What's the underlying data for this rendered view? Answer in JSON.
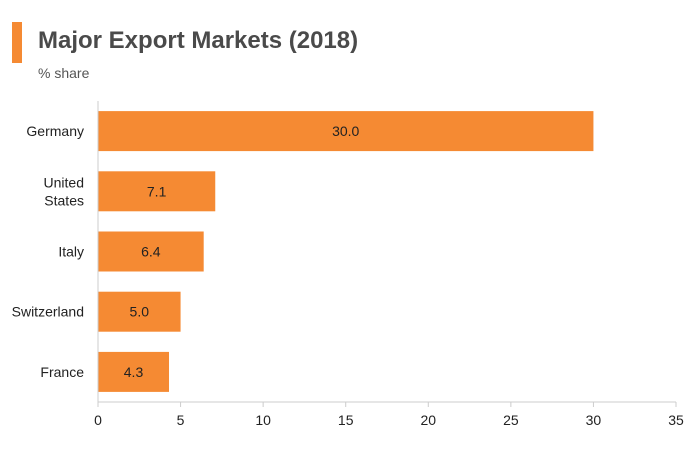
{
  "header": {
    "title": "Major Export Markets (2018)",
    "subtitle": "% share"
  },
  "colors": {
    "bar": "#f58a33",
    "title_accent": "#f58a33",
    "axis": "#cccccc",
    "text": "#222222"
  },
  "chart_data": {
    "type": "bar",
    "orientation": "horizontal",
    "title": "Major Export Markets (2018)",
    "subtitle": "% share",
    "categories": [
      [
        "Germany"
      ],
      [
        "United",
        "States"
      ],
      [
        "Italy"
      ],
      [
        "Switzerland"
      ],
      [
        "France"
      ]
    ],
    "values": [
      30.0,
      7.1,
      6.4,
      5.0,
      4.3
    ],
    "data_labels": [
      "30.0",
      "7.1",
      "6.4",
      "5.0",
      "4.3"
    ],
    "xlim": [
      0,
      35
    ],
    "xticks": [
      0,
      5,
      10,
      15,
      20,
      25,
      30,
      35
    ],
    "xtick_labels": [
      "0",
      "5",
      "10",
      "15",
      "20",
      "25",
      "30",
      "35"
    ],
    "xlabel": "",
    "ylabel": "",
    "grid": false,
    "legend": "none"
  }
}
